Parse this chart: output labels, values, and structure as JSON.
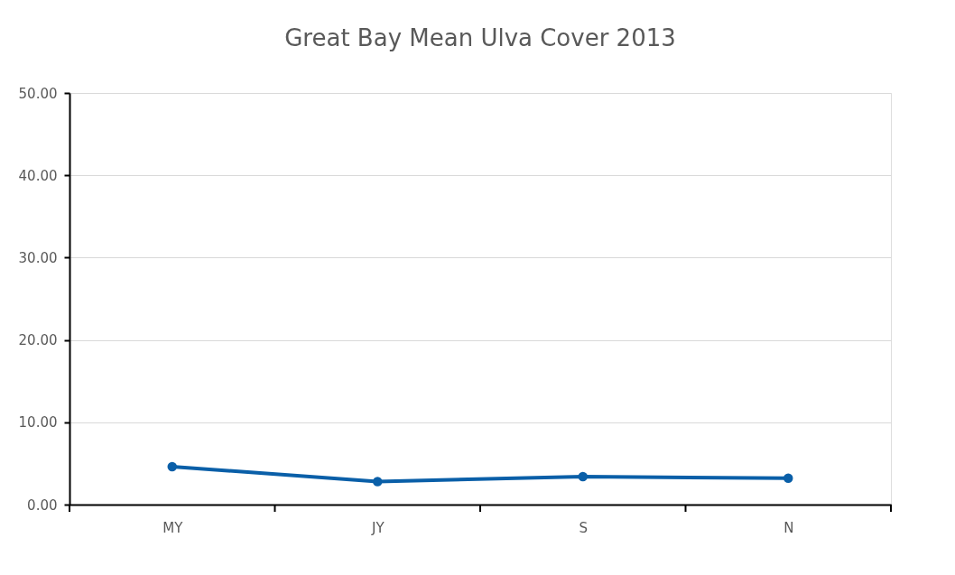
{
  "chart_data": {
    "type": "line",
    "title": "Great Bay Mean Ulva Cover 2013",
    "categories": [
      "MY",
      "JY",
      "S",
      "N"
    ],
    "series": [
      {
        "color": "#0a5fa8",
        "values": [
          4.6,
          2.8,
          3.4,
          3.2
        ]
      }
    ],
    "ylim": [
      0,
      50
    ],
    "yticks": [
      {
        "value": 0,
        "label": "0.00"
      },
      {
        "value": 10,
        "label": "10.00"
      },
      {
        "value": 20,
        "label": "20.00"
      },
      {
        "value": 30,
        "label": "30.00"
      },
      {
        "value": 40,
        "label": "40.00"
      },
      {
        "value": 50,
        "label": "50.00"
      }
    ],
    "grid": "y",
    "marker": "circle",
    "line_style": "solid",
    "legend": false
  }
}
